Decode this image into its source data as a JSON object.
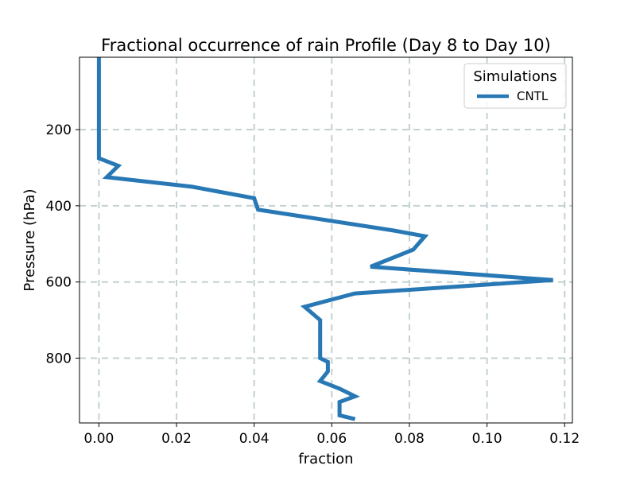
{
  "chart_data": {
    "type": "line",
    "title": "Fractional occurrence of rain Profile (Day 8 to Day 10)",
    "xlabel": "fraction",
    "ylabel": "Pressure (hPa)",
    "xlim": [
      -0.005,
      0.122
    ],
    "ylim": [
      970,
      10
    ],
    "y_inverted": true,
    "xticks": [
      0.0,
      0.02,
      0.04,
      0.06,
      0.08,
      0.1,
      0.12
    ],
    "xtick_labels": [
      "0.00",
      "0.02",
      "0.04",
      "0.06",
      "0.08",
      "0.10",
      "0.12"
    ],
    "yticks": [
      200,
      400,
      600,
      800
    ],
    "ytick_labels": [
      "200",
      "400",
      "600",
      "800"
    ],
    "grid": true,
    "legend": {
      "title": "Simulations",
      "placement": "top-right"
    },
    "series": [
      {
        "name": "CNTL",
        "color": "#2878b5",
        "x": [
          0.0,
          0.0,
          0.0,
          0.005,
          0.002,
          0.024,
          0.04,
          0.041,
          0.076,
          0.084,
          0.081,
          0.07,
          0.117,
          0.066,
          0.053,
          0.057,
          0.057,
          0.057,
          0.059,
          0.059,
          0.057,
          0.062,
          0.066,
          0.062,
          0.062,
          0.066
        ],
        "y": [
          10,
          200,
          275,
          295,
          325,
          350,
          380,
          410,
          465,
          480,
          515,
          560,
          595,
          630,
          665,
          700,
          750,
          800,
          810,
          835,
          860,
          880,
          900,
          915,
          950,
          960
        ]
      }
    ]
  }
}
